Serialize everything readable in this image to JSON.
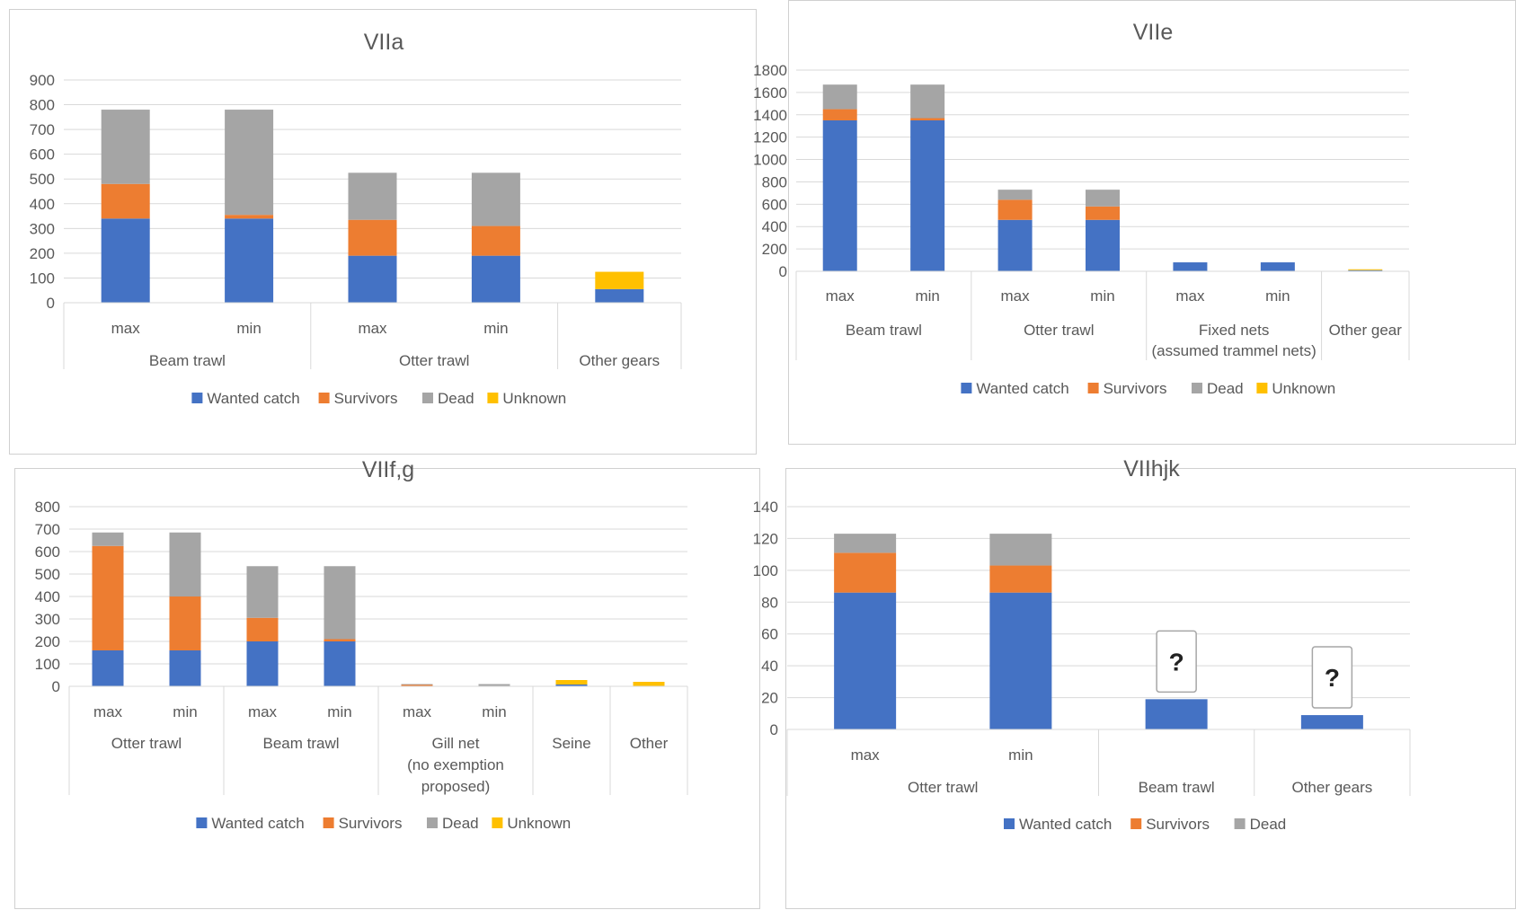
{
  "legend_labels": {
    "wanted": "Wanted catch",
    "survivors": "Survivors",
    "dead": "Dead",
    "unknown": "Unknown"
  },
  "colors": {
    "wanted": "#4472c4",
    "survivors": "#ed7d31",
    "dead": "#a5a5a5",
    "unknown": "#ffc000"
  },
  "chart_data": [
    {
      "type": "bar",
      "stacked": true,
      "title": "VIIa",
      "ylim": [
        0,
        900
      ],
      "yticks": [
        0,
        100,
        200,
        300,
        400,
        500,
        600,
        700,
        800,
        900
      ],
      "grid": true,
      "legend_position": "bottom",
      "legend_series": [
        "wanted",
        "survivors",
        "dead",
        "unknown"
      ],
      "categories": [
        "max",
        "min",
        "max",
        "min",
        ""
      ],
      "groups": [
        {
          "label": [
            "Beam trawl"
          ],
          "span": 2
        },
        {
          "label": [
            "Otter trawl"
          ],
          "span": 2
        },
        {
          "label": [
            "Other gears"
          ],
          "span": 1
        }
      ],
      "series": [
        {
          "key": "wanted",
          "name": "Wanted catch",
          "values": [
            340,
            340,
            190,
            190,
            55
          ]
        },
        {
          "key": "survivors",
          "name": "Survivors",
          "values": [
            140,
            15,
            145,
            120,
            0
          ]
        },
        {
          "key": "dead",
          "name": "Dead",
          "values": [
            300,
            425,
            190,
            215,
            0
          ]
        },
        {
          "key": "unknown",
          "name": "Unknown",
          "values": [
            0,
            0,
            0,
            0,
            70
          ]
        }
      ]
    },
    {
      "type": "bar",
      "stacked": true,
      "title": "VIIe",
      "ylim": [
        0,
        1800
      ],
      "yticks": [
        0,
        200,
        400,
        600,
        800,
        1000,
        1200,
        1400,
        1600,
        1800
      ],
      "grid": true,
      "legend_position": "bottom",
      "legend_series": [
        "wanted",
        "survivors",
        "dead",
        "unknown"
      ],
      "categories": [
        "max",
        "min",
        "max",
        "min",
        "max",
        "min",
        ""
      ],
      "groups": [
        {
          "label": [
            "Beam trawl"
          ],
          "span": 2
        },
        {
          "label": [
            "Otter trawl"
          ],
          "span": 2
        },
        {
          "label": [
            "Fixed nets",
            "(assumed trammel nets)"
          ],
          "span": 2
        },
        {
          "label": [
            "Other gear"
          ],
          "span": 1
        }
      ],
      "series": [
        {
          "key": "wanted",
          "name": "Wanted catch",
          "values": [
            1350,
            1350,
            460,
            460,
            80,
            80,
            10
          ]
        },
        {
          "key": "survivors",
          "name": "Survivors",
          "values": [
            100,
            20,
            180,
            120,
            0,
            0,
            0
          ]
        },
        {
          "key": "dead",
          "name": "Dead",
          "values": [
            220,
            300,
            90,
            150,
            0,
            0,
            0
          ]
        },
        {
          "key": "unknown",
          "name": "Unknown",
          "values": [
            0,
            0,
            0,
            0,
            0,
            0,
            8
          ]
        }
      ]
    },
    {
      "type": "bar",
      "stacked": true,
      "title": "VIIf,g",
      "ylim": [
        0,
        800
      ],
      "yticks": [
        0,
        100,
        200,
        300,
        400,
        500,
        600,
        700,
        800
      ],
      "grid": true,
      "legend_position": "bottom",
      "legend_series": [
        "wanted",
        "survivors",
        "dead",
        "unknown"
      ],
      "categories": [
        "max",
        "min",
        "max",
        "min",
        "max",
        "min",
        "",
        ""
      ],
      "groups": [
        {
          "label": [
            "Otter trawl"
          ],
          "span": 2
        },
        {
          "label": [
            "Beam trawl"
          ],
          "span": 2
        },
        {
          "label": [
            "Gill net",
            "(no exemption",
            "proposed)"
          ],
          "span": 2
        },
        {
          "label": [
            "Seine"
          ],
          "span": 1
        },
        {
          "label": [
            "Other"
          ],
          "span": 1
        }
      ],
      "series": [
        {
          "key": "wanted",
          "name": "Wanted catch",
          "values": [
            160,
            160,
            200,
            200,
            2,
            2,
            8,
            2
          ]
        },
        {
          "key": "survivors",
          "name": "Survivors",
          "values": [
            465,
            240,
            105,
            10,
            6,
            0,
            0,
            0
          ]
        },
        {
          "key": "dead",
          "name": "Dead",
          "values": [
            60,
            285,
            230,
            325,
            2,
            8,
            0,
            0
          ]
        },
        {
          "key": "unknown",
          "name": "Unknown",
          "values": [
            0,
            0,
            0,
            0,
            0,
            0,
            20,
            18
          ]
        }
      ]
    },
    {
      "type": "bar",
      "stacked": true,
      "title": "VIIhjk",
      "ylim": [
        0,
        140
      ],
      "yticks": [
        0,
        20,
        40,
        60,
        80,
        100,
        120,
        140
      ],
      "grid": true,
      "legend_position": "bottom",
      "legend_series": [
        "wanted",
        "survivors",
        "dead"
      ],
      "categories": [
        "max",
        "min",
        "",
        ""
      ],
      "groups": [
        {
          "label": [
            "Otter trawl"
          ],
          "span": 2
        },
        {
          "label": [
            "Beam trawl"
          ],
          "span": 1
        },
        {
          "label": [
            "Other gears"
          ],
          "span": 1
        }
      ],
      "annotations": [
        {
          "category_index": 2,
          "text": "?"
        },
        {
          "category_index": 3,
          "text": "?"
        }
      ],
      "series": [
        {
          "key": "wanted",
          "name": "Wanted catch",
          "values": [
            86,
            86,
            19,
            9
          ]
        },
        {
          "key": "survivors",
          "name": "Survivors",
          "values": [
            25,
            17,
            0,
            0
          ]
        },
        {
          "key": "dead",
          "name": "Dead",
          "values": [
            12,
            20,
            0,
            0
          ]
        }
      ]
    }
  ]
}
